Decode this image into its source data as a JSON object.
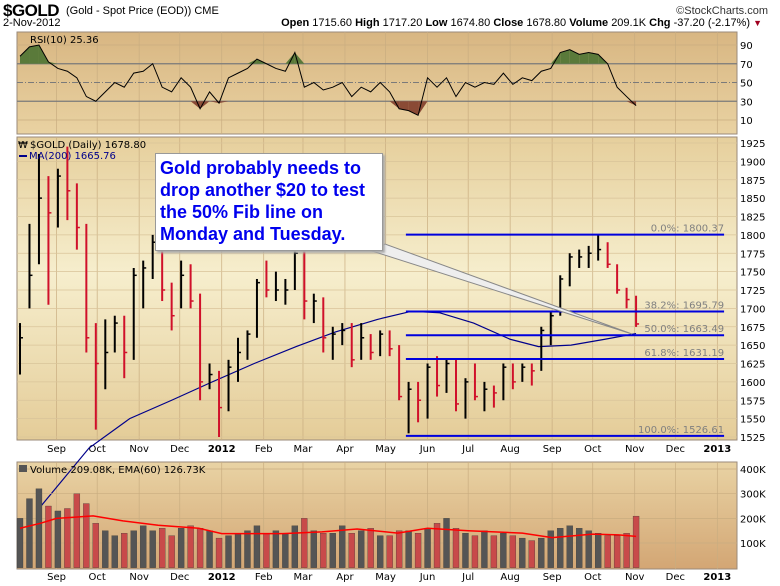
{
  "header": {
    "symbol": "$GOLD",
    "description": "(Gold - Spot Price (EOD)) CME",
    "copyright": "©StockCharts.com",
    "date": "2-Nov-2012",
    "open_label": "Open",
    "open": "1715.60",
    "high_label": "High",
    "high": "1717.20",
    "low_label": "Low",
    "low": "1674.80",
    "close_label": "Close",
    "close": "1678.80",
    "volume_label": "Volume",
    "volume": "209.1K",
    "chg_label": "Chg",
    "chg": "-37.20 (-2.17%)",
    "chg_icon": "triangle-down-icon"
  },
  "annotation": "Gold probably needs to drop another $20 to test the 50% Fib line on Monday and Tuesday.",
  "colors": {
    "up": "#000000",
    "down": "#d0102a",
    "ma": "#00008b",
    "fib": "#0000dd",
    "ema": "#ff0000",
    "rsi_over": "#5a7a3a",
    "rsi_under": "#8a4a35"
  },
  "chart_data": [
    {
      "type": "line",
      "panel": "rsi",
      "legend": "RSI(10) 25.36",
      "ylim": [
        0,
        100
      ],
      "yticks": [
        90,
        70,
        50,
        30,
        10
      ],
      "levels": [
        70,
        50,
        30
      ],
      "x": [
        "2011-08-05",
        "2011-08-12",
        "2011-08-19",
        "2011-08-26",
        "2011-09-02",
        "2011-09-09",
        "2011-09-16",
        "2011-09-23",
        "2011-09-30",
        "2011-10-07",
        "2011-10-14",
        "2011-10-21",
        "2011-10-28",
        "2011-11-04",
        "2011-11-11",
        "2011-11-18",
        "2011-11-25",
        "2011-12-02",
        "2011-12-09",
        "2011-12-16",
        "2011-12-23",
        "2011-12-30",
        "2012-01-06",
        "2012-01-13",
        "2012-01-20",
        "2012-01-27",
        "2012-02-03",
        "2012-02-10",
        "2012-02-17",
        "2012-02-24",
        "2012-03-02",
        "2012-03-09",
        "2012-03-16",
        "2012-03-23",
        "2012-03-30",
        "2012-04-06",
        "2012-04-13",
        "2012-04-20",
        "2012-04-27",
        "2012-05-04",
        "2012-05-11",
        "2012-05-18",
        "2012-05-25",
        "2012-06-01",
        "2012-06-08",
        "2012-06-15",
        "2012-06-22",
        "2012-06-29",
        "2012-07-06",
        "2012-07-13",
        "2012-07-20",
        "2012-07-27",
        "2012-08-03",
        "2012-08-10",
        "2012-08-17",
        "2012-08-24",
        "2012-08-31",
        "2012-09-07",
        "2012-09-14",
        "2012-09-21",
        "2012-09-28",
        "2012-10-05",
        "2012-10-12",
        "2012-10-19",
        "2012-10-26",
        "2012-11-02"
      ],
      "values": [
        78,
        88,
        90,
        72,
        65,
        62,
        55,
        35,
        30,
        40,
        50,
        45,
        60,
        62,
        70,
        45,
        40,
        55,
        45,
        22,
        40,
        28,
        55,
        60,
        65,
        75,
        70,
        65,
        62,
        82,
        45,
        50,
        42,
        45,
        50,
        35,
        45,
        40,
        50,
        40,
        22,
        20,
        15,
        55,
        45,
        55,
        35,
        50,
        45,
        50,
        48,
        60,
        48,
        55,
        52,
        62,
        65,
        82,
        85,
        80,
        82,
        80,
        70,
        45,
        35,
        25.36
      ]
    },
    {
      "type": "ohlc",
      "panel": "price",
      "legend": "$GOLD (Daily) 1678.80",
      "ylim": [
        1520,
        1935
      ],
      "yticks": [
        1925,
        1900,
        1875,
        1850,
        1825,
        1800,
        1775,
        1750,
        1725,
        1700,
        1675,
        1650,
        1625,
        1600,
        1575,
        1550,
        1525
      ],
      "xticks": [
        [
          "2011-09-01",
          "Sep"
        ],
        [
          "2011-10-01",
          "Oct"
        ],
        [
          "2011-11-01",
          "Nov"
        ],
        [
          "2011-12-01",
          "Dec"
        ],
        [
          "2012-01-01",
          "2012"
        ],
        [
          "2012-02-01",
          "Feb"
        ],
        [
          "2012-03-01",
          "Mar"
        ],
        [
          "2012-04-01",
          "Apr"
        ],
        [
          "2012-05-01",
          "May"
        ],
        [
          "2012-06-01",
          "Jun"
        ],
        [
          "2012-07-01",
          "Jul"
        ],
        [
          "2012-08-01",
          "Aug"
        ],
        [
          "2012-09-01",
          "Sep"
        ],
        [
          "2012-10-01",
          "Oct"
        ],
        [
          "2012-11-01",
          "Nov"
        ],
        [
          "2012-12-01",
          "Dec"
        ],
        [
          "2013-01-01",
          "2013"
        ]
      ],
      "columns": [
        "date",
        "high",
        "low",
        "close"
      ],
      "bars": [
        [
          "2011-08-05",
          1680,
          1610,
          1660
        ],
        [
          "2011-08-12",
          1815,
          1700,
          1745
        ],
        [
          "2011-08-19",
          1910,
          1760,
          1850
        ],
        [
          "2011-08-26",
          1880,
          1705,
          1830
        ],
        [
          "2011-09-02",
          1890,
          1810,
          1880
        ],
        [
          "2011-09-09",
          1920,
          1820,
          1860
        ],
        [
          "2011-09-16",
          1870,
          1780,
          1810
        ],
        [
          "2011-09-23",
          1815,
          1640,
          1660
        ],
        [
          "2011-09-30",
          1680,
          1535,
          1625
        ],
        [
          "2011-10-07",
          1685,
          1590,
          1640
        ],
        [
          "2011-10-14",
          1690,
          1640,
          1680
        ],
        [
          "2011-10-21",
          1690,
          1605,
          1640
        ],
        [
          "2011-10-28",
          1755,
          1630,
          1745
        ],
        [
          "2011-11-04",
          1765,
          1700,
          1755
        ],
        [
          "2011-11-11",
          1800,
          1740,
          1790
        ],
        [
          "2011-11-18",
          1795,
          1710,
          1725
        ],
        [
          "2011-11-25",
          1735,
          1670,
          1690
        ],
        [
          "2011-12-02",
          1765,
          1700,
          1745
        ],
        [
          "2011-12-09",
          1760,
          1700,
          1710
        ],
        [
          "2011-12-16",
          1720,
          1575,
          1600
        ],
        [
          "2011-12-23",
          1625,
          1590,
          1610
        ],
        [
          "2011-12-30",
          1615,
          1525,
          1565
        ],
        [
          "2012-01-06",
          1630,
          1560,
          1620
        ],
        [
          "2012-01-13",
          1660,
          1600,
          1640
        ],
        [
          "2012-01-20",
          1670,
          1630,
          1665
        ],
        [
          "2012-01-27",
          1740,
          1660,
          1735
        ],
        [
          "2012-02-03",
          1765,
          1715,
          1725
        ],
        [
          "2012-02-10",
          1750,
          1710,
          1725
        ],
        [
          "2012-02-17",
          1740,
          1705,
          1725
        ],
        [
          "2012-02-24",
          1790,
          1725,
          1775
        ],
        [
          "2012-03-02",
          1790,
          1685,
          1710
        ],
        [
          "2012-03-09",
          1720,
          1680,
          1710
        ],
        [
          "2012-03-16",
          1715,
          1640,
          1660
        ],
        [
          "2012-03-23",
          1675,
          1630,
          1665
        ],
        [
          "2012-03-30",
          1680,
          1650,
          1670
        ],
        [
          "2012-04-06",
          1680,
          1620,
          1630
        ],
        [
          "2012-04-13",
          1680,
          1630,
          1660
        ],
        [
          "2012-04-20",
          1665,
          1630,
          1640
        ],
        [
          "2012-04-27",
          1670,
          1635,
          1665
        ],
        [
          "2012-05-04",
          1670,
          1635,
          1645
        ],
        [
          "2012-05-11",
          1650,
          1575,
          1580
        ],
        [
          "2012-05-18",
          1600,
          1530,
          1590
        ],
        [
          "2012-05-25",
          1600,
          1545,
          1575
        ],
        [
          "2012-06-01",
          1625,
          1550,
          1620
        ],
        [
          "2012-06-08",
          1635,
          1580,
          1595
        ],
        [
          "2012-06-15",
          1630,
          1585,
          1625
        ],
        [
          "2012-06-22",
          1630,
          1560,
          1570
        ],
        [
          "2012-06-29",
          1605,
          1550,
          1600
        ],
        [
          "2012-07-06",
          1625,
          1575,
          1580
        ],
        [
          "2012-07-13",
          1600,
          1560,
          1590
        ],
        [
          "2012-07-20",
          1595,
          1565,
          1585
        ],
        [
          "2012-07-27",
          1625,
          1575,
          1620
        ],
        [
          "2012-08-03",
          1625,
          1590,
          1600
        ],
        [
          "2012-08-10",
          1625,
          1600,
          1620
        ],
        [
          "2012-08-17",
          1625,
          1595,
          1615
        ],
        [
          "2012-08-24",
          1675,
          1615,
          1670
        ],
        [
          "2012-08-31",
          1695,
          1650,
          1690
        ],
        [
          "2012-09-07",
          1745,
          1690,
          1740
        ],
        [
          "2012-09-14",
          1775,
          1730,
          1770
        ],
        [
          "2012-09-21",
          1780,
          1755,
          1770
        ],
        [
          "2012-09-28",
          1785,
          1755,
          1775
        ],
        [
          "2012-10-05",
          1800,
          1765,
          1780
        ],
        [
          "2012-10-12",
          1790,
          1755,
          1760
        ],
        [
          "2012-10-19",
          1760,
          1720,
          1725
        ],
        [
          "2012-10-26",
          1728,
          1700,
          1712
        ],
        [
          "2012-11-02",
          1717.2,
          1674.8,
          1678.8
        ]
      ],
      "ma": {
        "legend": "MA(200) 1665.76",
        "points": [
          [
            "2011-08-20",
            1430
          ],
          [
            "2011-09-25",
            1510
          ],
          [
            "2011-10-25",
            1550
          ],
          [
            "2011-11-25",
            1575
          ],
          [
            "2011-12-25",
            1600
          ],
          [
            "2012-01-25",
            1625
          ],
          [
            "2012-02-25",
            1648
          ],
          [
            "2012-03-25",
            1668
          ],
          [
            "2012-04-25",
            1685
          ],
          [
            "2012-05-20",
            1696
          ],
          [
            "2012-06-10",
            1694
          ],
          [
            "2012-07-05",
            1680
          ],
          [
            "2012-08-01",
            1658
          ],
          [
            "2012-08-22",
            1648
          ],
          [
            "2012-09-15",
            1650
          ],
          [
            "2012-10-10",
            1658
          ],
          [
            "2012-11-02",
            1665.76
          ]
        ]
      },
      "fib_start": "2012-05-16",
      "fib_end": "2013-01-06",
      "fib": [
        {
          "label": "0.0%: 1800.37",
          "value": 1800.37
        },
        {
          "label": "38.2%: 1695.79",
          "value": 1695.79
        },
        {
          "label": "50.0%: 1663.49",
          "value": 1663.49
        },
        {
          "label": "61.8%: 1631.19",
          "value": 1631.19
        },
        {
          "label": "100.0%: 1526.61",
          "value": 1526.61
        }
      ]
    },
    {
      "type": "bar",
      "panel": "volume",
      "legend": "Volume 209.08K, EMA(60) 126.73K",
      "unit": "K",
      "ylim": [
        0,
        430
      ],
      "yticks": [
        [
          400,
          "400K"
        ],
        [
          300,
          "300K"
        ],
        [
          200,
          "200K"
        ],
        [
          100,
          "100K"
        ]
      ],
      "values": [
        200,
        280,
        320,
        250,
        230,
        240,
        300,
        260,
        180,
        150,
        130,
        140,
        150,
        170,
        150,
        160,
        130,
        160,
        170,
        160,
        150,
        120,
        130,
        140,
        150,
        170,
        140,
        150,
        140,
        170,
        200,
        150,
        140,
        140,
        170,
        140,
        150,
        160,
        130,
        130,
        150,
        150,
        140,
        160,
        180,
        200,
        160,
        140,
        130,
        150,
        130,
        140,
        130,
        120,
        110,
        120,
        150,
        160,
        170,
        160,
        150,
        140,
        130,
        130,
        140,
        209.08
      ],
      "ema": [
        [
          "2011-08-05",
          160
        ],
        [
          "2011-08-20",
          180
        ],
        [
          "2011-09-01",
          200
        ],
        [
          "2011-09-15",
          205
        ],
        [
          "2011-09-28",
          210
        ],
        [
          "2011-10-20",
          190
        ],
        [
          "2011-11-15",
          172
        ],
        [
          "2011-12-15",
          160
        ],
        [
          "2012-01-01",
          138
        ],
        [
          "2012-02-15",
          138
        ],
        [
          "2012-03-15",
          145
        ],
        [
          "2012-04-10",
          157
        ],
        [
          "2012-05-10",
          140
        ],
        [
          "2012-06-01",
          160
        ],
        [
          "2012-07-01",
          150
        ],
        [
          "2012-08-10",
          140
        ],
        [
          "2012-09-01",
          122
        ],
        [
          "2012-10-01",
          136
        ],
        [
          "2012-10-20",
          133
        ],
        [
          "2012-11-02",
          126.73
        ]
      ]
    }
  ]
}
